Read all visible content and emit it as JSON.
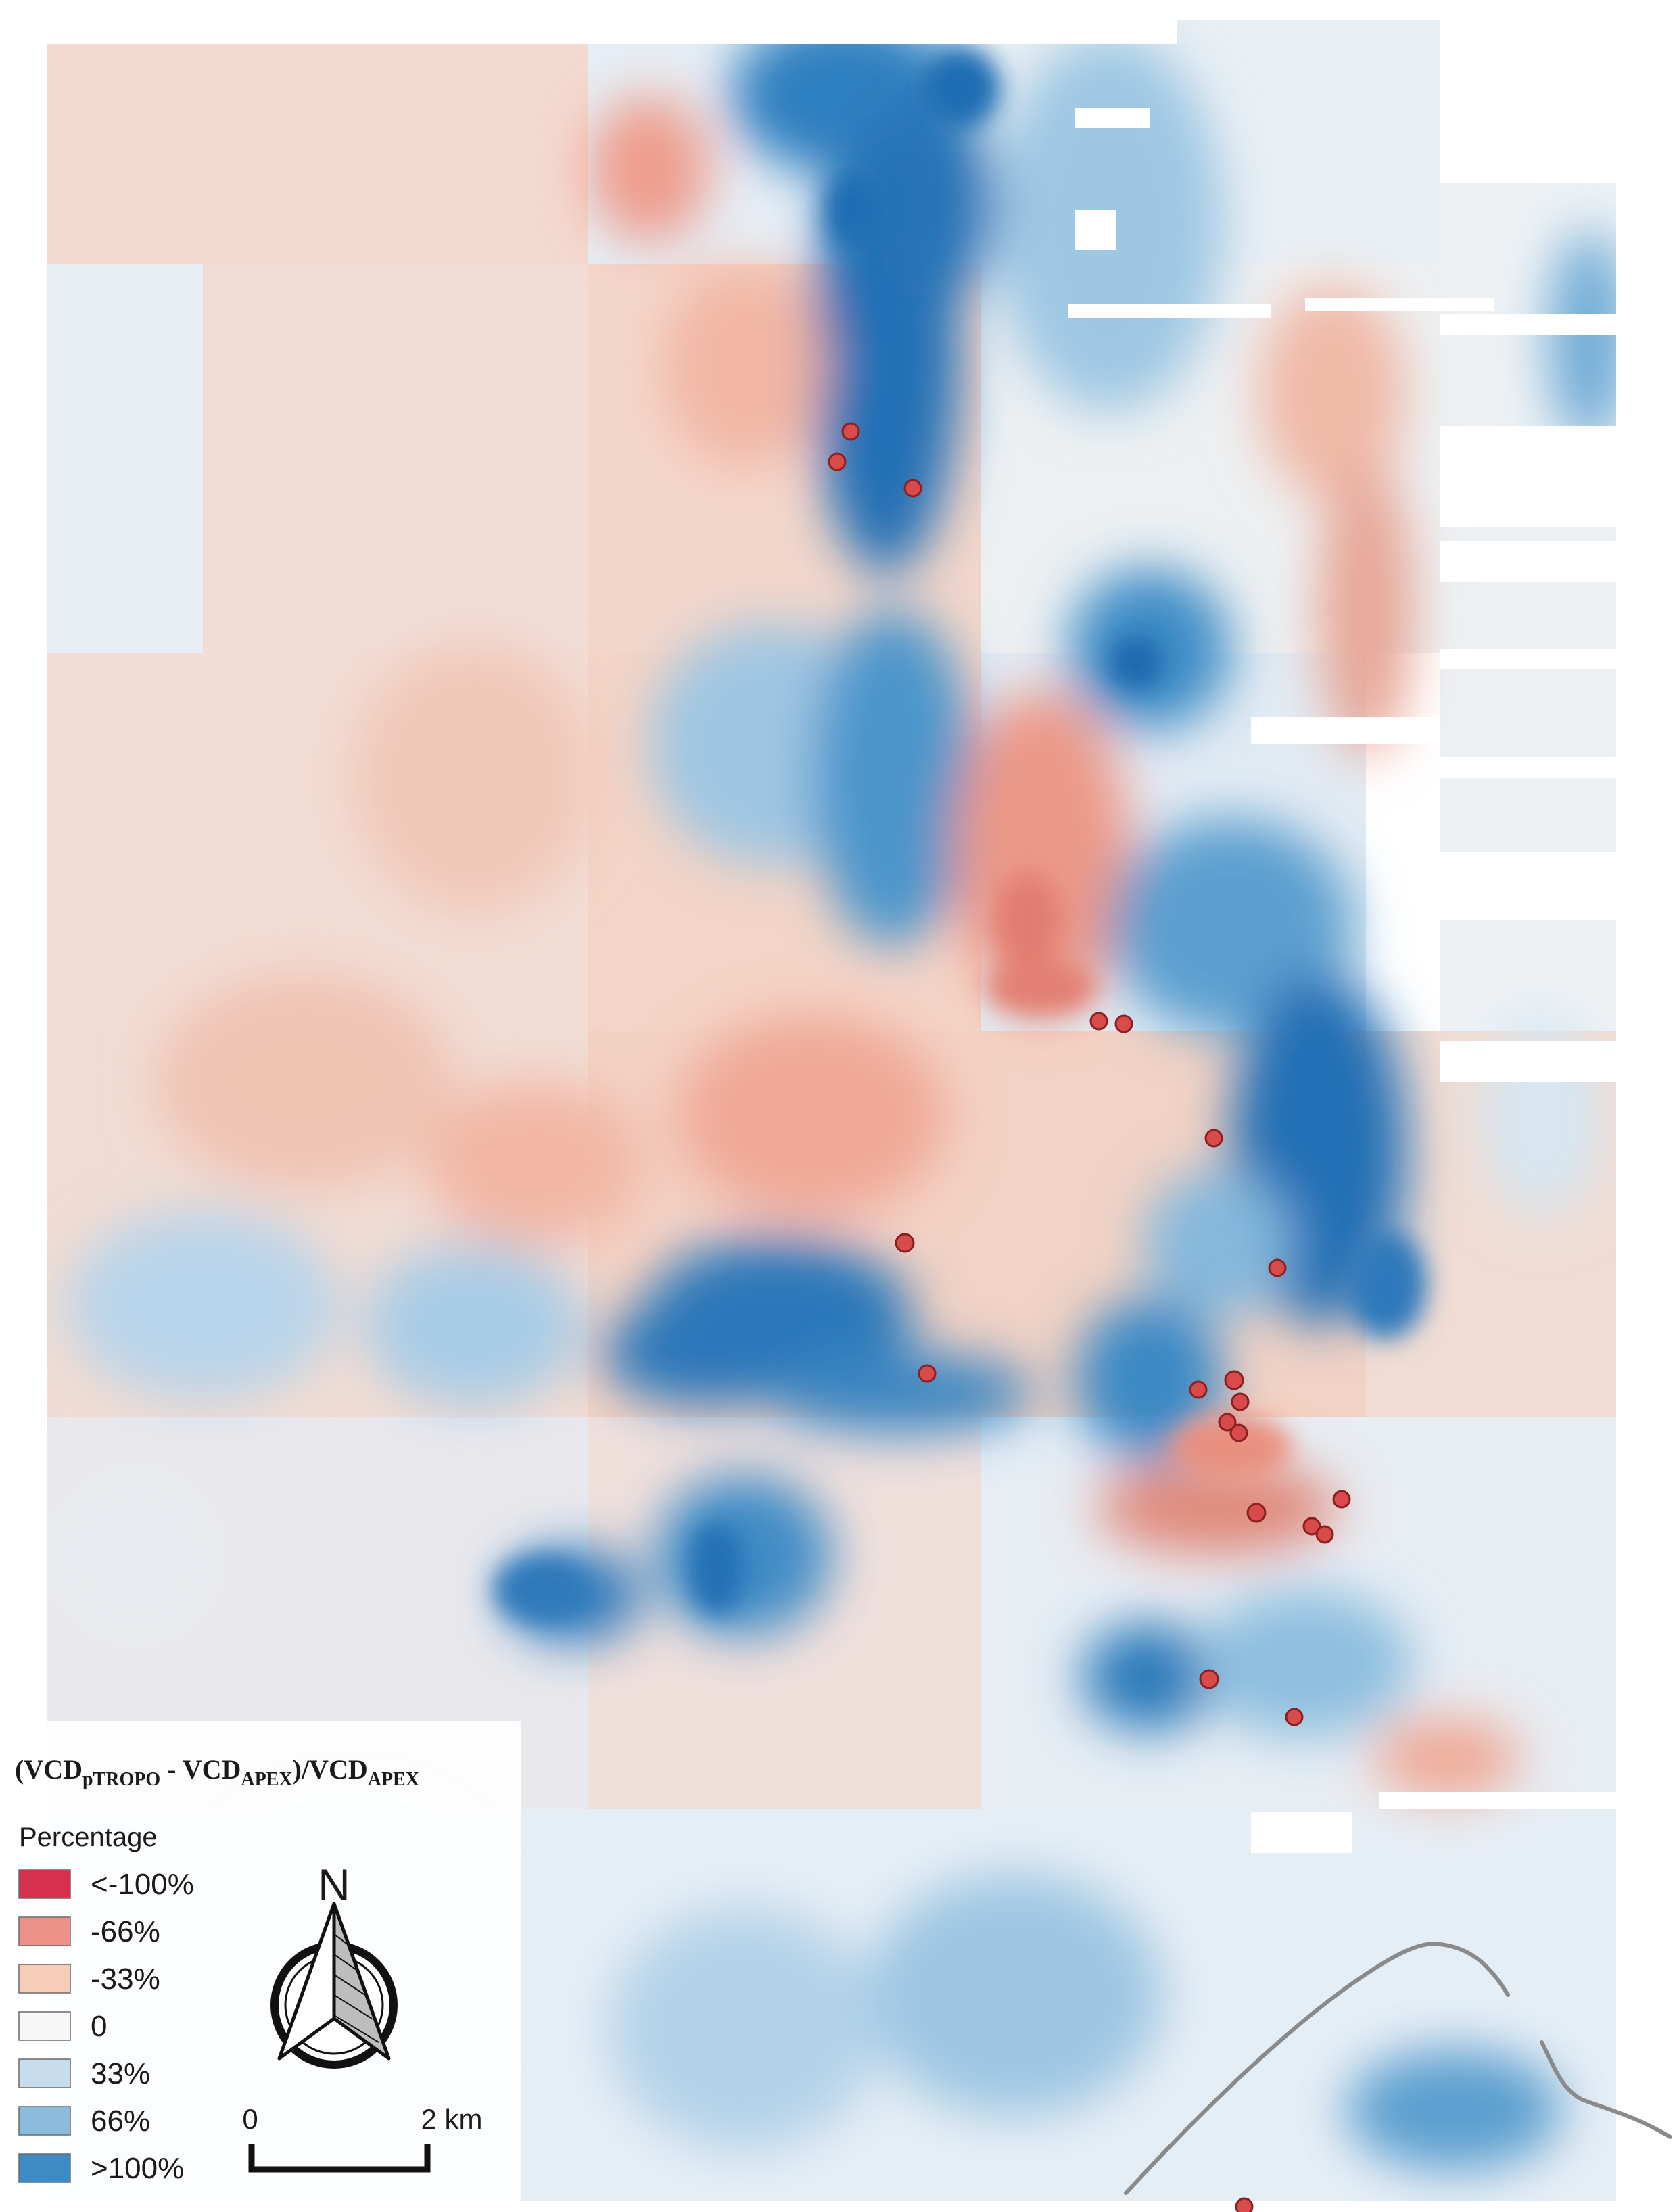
{
  "map": {
    "legend": {
      "title_main": "(VCD",
      "title_sub1": "pTROPO",
      "title_mid": " - VCD",
      "title_sub2": "APEX",
      "title_mid2": ")/VCD",
      "title_sub3": "APEX",
      "subtitle": "Percentage",
      "classes": [
        {
          "label": "<-100%",
          "color": "#d7304f"
        },
        {
          "label": "-66%",
          "color": "#ee9188"
        },
        {
          "label": "-33%",
          "color": "#f6cdb8"
        },
        {
          "label": "0",
          "color": "#f7f7f7"
        },
        {
          "label": "33%",
          "color": "#c7dcec"
        },
        {
          "label": "66%",
          "color": "#8cbcdd"
        },
        {
          "label": ">100%",
          "color": "#3c8bc4"
        }
      ]
    },
    "north_arrow": {
      "label": "N"
    },
    "scale_bar": {
      "start_label": "0",
      "end_label": "2 km"
    }
  }
}
